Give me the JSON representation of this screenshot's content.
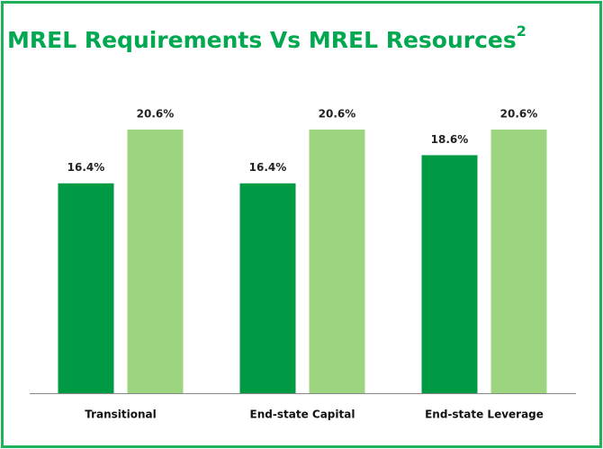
{
  "chart_data": {
    "type": "bar",
    "title": "MREL Requirements Vs MREL Resources",
    "title_superscript": "2",
    "categories": [
      "Transitional",
      "End-state Capital",
      "End-state Leverage"
    ],
    "series": [
      {
        "color": "#009a44",
        "values": [
          16.4,
          16.4,
          18.6
        ],
        "value_labels": [
          "16.4%",
          "16.4%",
          "18.6%"
        ]
      },
      {
        "color": "#9dd47f",
        "values": [
          20.6,
          20.6,
          20.6
        ],
        "value_labels": [
          "20.6%",
          "20.6%",
          "20.6%"
        ]
      }
    ]
  }
}
